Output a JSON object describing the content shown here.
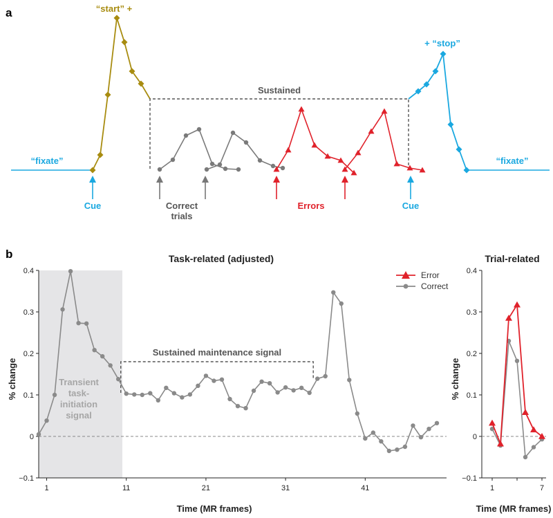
{
  "panel_a": {
    "letter": "a",
    "colors": {
      "cyan": "#1aa8e0",
      "olive": "#a88c10",
      "gray": "#7a7a7a",
      "red": "#e0222b",
      "dark": "#555555"
    },
    "labels": {
      "start": "“start” +",
      "stop": "+ “stop”",
      "fixate_left": "“fixate”",
      "fixate_right": "“fixate”",
      "sustained": "Sustained",
      "cue_left": "Cue",
      "cue_right": "Cue",
      "correct_line1": "Correct",
      "correct_line2": "trials",
      "errors": "Errors"
    }
  },
  "panel_b": {
    "letter": "b",
    "shaded_label": [
      "Transient",
      "task-",
      "initiation",
      "signal"
    ],
    "sustained_label": "Sustained maintenance signal"
  },
  "chart_data": [
    {
      "type": "line",
      "title": "Task-related (adjusted)",
      "xlabel": "Time (MR frames)",
      "ylabel": "% change",
      "xlim": [
        0,
        50
      ],
      "ylim": [
        -0.1,
        0.4
      ],
      "xticks": [
        1,
        11,
        21,
        31,
        41
      ],
      "yticks": [
        "−0.1",
        "0",
        "0.1",
        "0.2",
        "0.3",
        "0.4"
      ],
      "shaded_x": [
        0,
        10.5
      ],
      "sustained_x": [
        11,
        35
      ],
      "sustained_y": 0.18,
      "legend": [
        {
          "name": "Error",
          "color": "#e0222b",
          "marker": "triangle"
        },
        {
          "name": "Correct",
          "color": "#8a8a8a",
          "marker": "circle"
        }
      ],
      "series": [
        {
          "name": "Correct",
          "color": "#8a8a8a",
          "x": [
            0,
            1,
            2,
            3,
            4,
            5,
            6,
            7,
            8,
            9,
            10,
            11,
            12,
            13,
            14,
            15,
            16,
            17,
            18,
            19,
            20,
            21,
            22,
            23,
            24,
            25,
            26,
            27,
            28,
            29,
            30,
            31,
            32,
            33,
            34,
            35,
            36,
            37,
            38,
            39,
            40,
            41,
            42,
            43,
            44,
            45,
            46,
            47,
            48,
            49,
            50
          ],
          "y": [
            0.005,
            0.038,
            0.1,
            0.306,
            0.398,
            0.273,
            0.272,
            0.208,
            0.193,
            0.171,
            0.138,
            0.103,
            0.101,
            0.1,
            0.104,
            0.087,
            0.117,
            0.104,
            0.094,
            0.101,
            0.122,
            0.146,
            0.134,
            0.137,
            0.09,
            0.073,
            0.068,
            0.11,
            0.132,
            0.128,
            0.106,
            0.118,
            0.111,
            0.117,
            0.105,
            0.139,
            0.145,
            0.347,
            0.32,
            0.136,
            0.055,
            -0.005,
            0.009,
            -0.012,
            -0.035,
            -0.032,
            -0.025,
            0.026,
            -0.002,
            0.018,
            0.032
          ]
        }
      ]
    },
    {
      "type": "line",
      "title": "Trial-related",
      "xlabel": "Time (MR frames)",
      "ylabel": "% change",
      "xlim": [
        0.5,
        7.5
      ],
      "ylim": [
        -0.1,
        0.4
      ],
      "xticks": [
        1,
        4,
        7
      ],
      "xtick_labels": [
        "1",
        "",
        "7"
      ],
      "yticks": [
        "−0.1",
        "0",
        "0.1",
        "0.2",
        "0.3",
        "0.4"
      ],
      "series": [
        {
          "name": "Error",
          "color": "#e0222b",
          "x": [
            1,
            2,
            3,
            4,
            5,
            6,
            7
          ],
          "y": [
            0.032,
            -0.018,
            0.285,
            0.317,
            0.058,
            0.016,
            0.0
          ]
        },
        {
          "name": "Correct",
          "color": "#8a8a8a",
          "x": [
            1,
            2,
            3,
            4,
            5,
            6,
            7
          ],
          "y": [
            0.018,
            -0.022,
            0.23,
            0.182,
            -0.05,
            -0.026,
            -0.007
          ]
        }
      ]
    }
  ]
}
